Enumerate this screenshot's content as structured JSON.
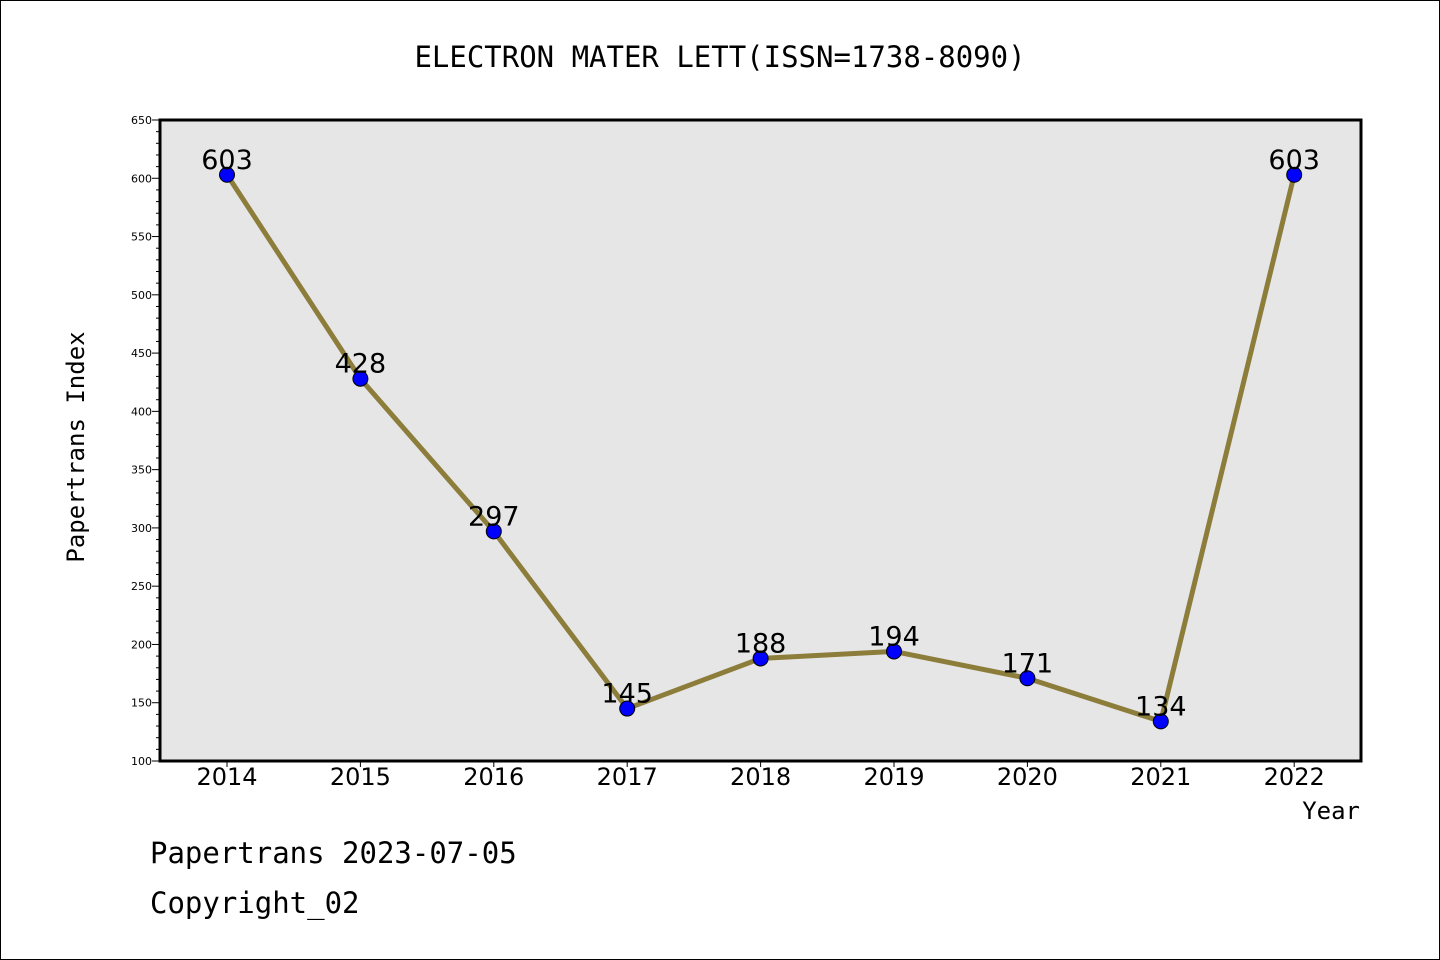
{
  "chart_data": {
    "type": "line",
    "title": "ELECTRON MATER LETT(ISSN=1738-8090)",
    "xlabel": "Year",
    "ylabel": "Papertrans Index",
    "categories": [
      "2014",
      "2015",
      "2016",
      "2017",
      "2018",
      "2019",
      "2020",
      "2021",
      "2022"
    ],
    "values": [
      603,
      428,
      297,
      145,
      188,
      194,
      171,
      134,
      603
    ],
    "ylim": [
      100,
      650
    ],
    "ytick_step": 50,
    "ytick_minor_step": 10,
    "grid": false,
    "line_color": "#8c7d3b",
    "marker_color": "#0000ff",
    "plot_background": "#e6e6e6"
  },
  "footer": {
    "date_line": "Papertrans 2023-07-05",
    "copyright_line": "Copyright_02"
  }
}
